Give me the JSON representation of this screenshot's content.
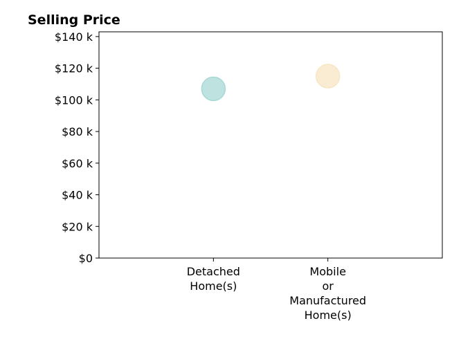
{
  "chart_data": {
    "type": "scatter",
    "title": "Selling Price",
    "xlabel": "",
    "ylabel": "",
    "categories": [
      [
        "Detached",
        "Home(s)"
      ],
      [
        "Mobile",
        "or",
        "Manufactured",
        "Home(s)"
      ]
    ],
    "values": [
      107000,
      115000
    ],
    "point_colors": [
      "#a8d8d4",
      "#f7e6c4"
    ],
    "xlim": [
      -1,
      2
    ],
    "ylim": [
      0,
      143000
    ],
    "yticks": [
      0,
      20000,
      40000,
      60000,
      80000,
      100000,
      120000,
      140000
    ],
    "ytick_labels": [
      "$0",
      "$20 k",
      "$40 k",
      "$60 k",
      "$80 k",
      "$100 k",
      "$120 k",
      "$140 k"
    ],
    "grid": false,
    "legend": "none"
  }
}
